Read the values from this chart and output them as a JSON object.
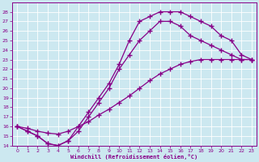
{
  "xlabel": "Windchill (Refroidissement éolien,°C)",
  "bg_color": "#cce8f0",
  "line_color": "#880088",
  "grid_color": "#aaccdd",
  "xlim": [
    -0.5,
    23.5
  ],
  "ylim": [
    14,
    29
  ],
  "xticks": [
    0,
    1,
    2,
    3,
    4,
    5,
    6,
    7,
    8,
    9,
    10,
    11,
    12,
    13,
    14,
    15,
    16,
    17,
    18,
    19,
    20,
    21,
    22,
    23
  ],
  "yticks": [
    14,
    15,
    16,
    17,
    18,
    19,
    20,
    21,
    22,
    23,
    24,
    25,
    26,
    27,
    28
  ],
  "line1_x": [
    0,
    1,
    2,
    3,
    4,
    5,
    6,
    7,
    8,
    9,
    10,
    11,
    12,
    13,
    14,
    15,
    16,
    17,
    18,
    19,
    20,
    21,
    22,
    23
  ],
  "line1_y": [
    16,
    15.8,
    15.5,
    15.3,
    15.2,
    15.5,
    16.0,
    16.5,
    17.2,
    17.8,
    18.5,
    19.2,
    20.0,
    20.8,
    21.5,
    22.0,
    22.5,
    22.8,
    23.0,
    23.0,
    23.0,
    23.0,
    23.0,
    23.0
  ],
  "line2_x": [
    0,
    1,
    2,
    3,
    4,
    5,
    6,
    7,
    8,
    9,
    10,
    11,
    12,
    13,
    14,
    15,
    16,
    17,
    18,
    19,
    20,
    21,
    22,
    23
  ],
  "line2_y": [
    16,
    15.5,
    15.0,
    14.2,
    14.0,
    14.5,
    15.5,
    17.0,
    18.5,
    20.0,
    22.0,
    23.5,
    25.0,
    26.0,
    27.0,
    27.0,
    26.5,
    25.5,
    25.0,
    24.5,
    24.0,
    23.5,
    23.0,
    23.0
  ],
  "line3_x": [
    0,
    1,
    2,
    3,
    4,
    5,
    6,
    7,
    8,
    9,
    10,
    11,
    12,
    13,
    14,
    15,
    16,
    17,
    18,
    19,
    20,
    21,
    22,
    23
  ],
  "line3_y": [
    16,
    15.5,
    15.0,
    14.2,
    14.0,
    14.5,
    16.0,
    17.5,
    19.0,
    20.5,
    22.5,
    25.0,
    27.0,
    27.5,
    28.0,
    28.0,
    28.0,
    27.5,
    27.0,
    26.5,
    25.5,
    25.0,
    23.5,
    23.0
  ]
}
